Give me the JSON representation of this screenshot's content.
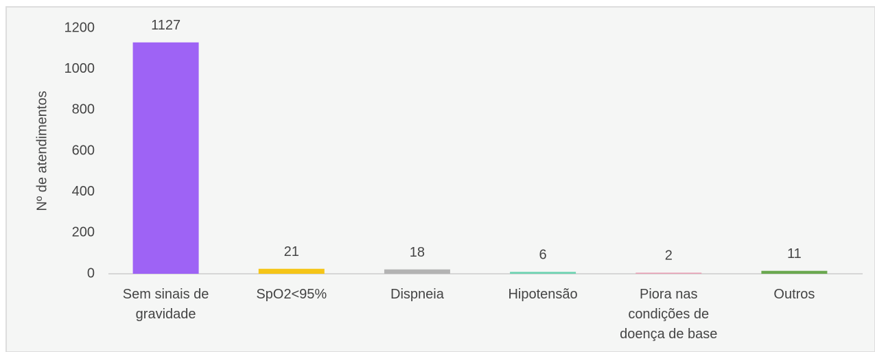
{
  "chart_data": {
    "type": "bar",
    "y_label": "Nº de atendimentos",
    "categories": [
      "Sem sinais de gravidade",
      "SpO2<95%",
      "Dispneia",
      "Hipotensão",
      "Piora nas condições de doença de base",
      "Outros"
    ],
    "values": [
      1127,
      21,
      18,
      6,
      2,
      11
    ],
    "colors": [
      "#9e63f5",
      "#f5c518",
      "#b3b3b3",
      "#70d3b3",
      "#e8a0b4",
      "#6aa84f"
    ],
    "ylim": [
      0,
      1200
    ],
    "yticks": [
      0,
      200,
      400,
      600,
      800,
      1000,
      1200
    ],
    "grid": false
  }
}
